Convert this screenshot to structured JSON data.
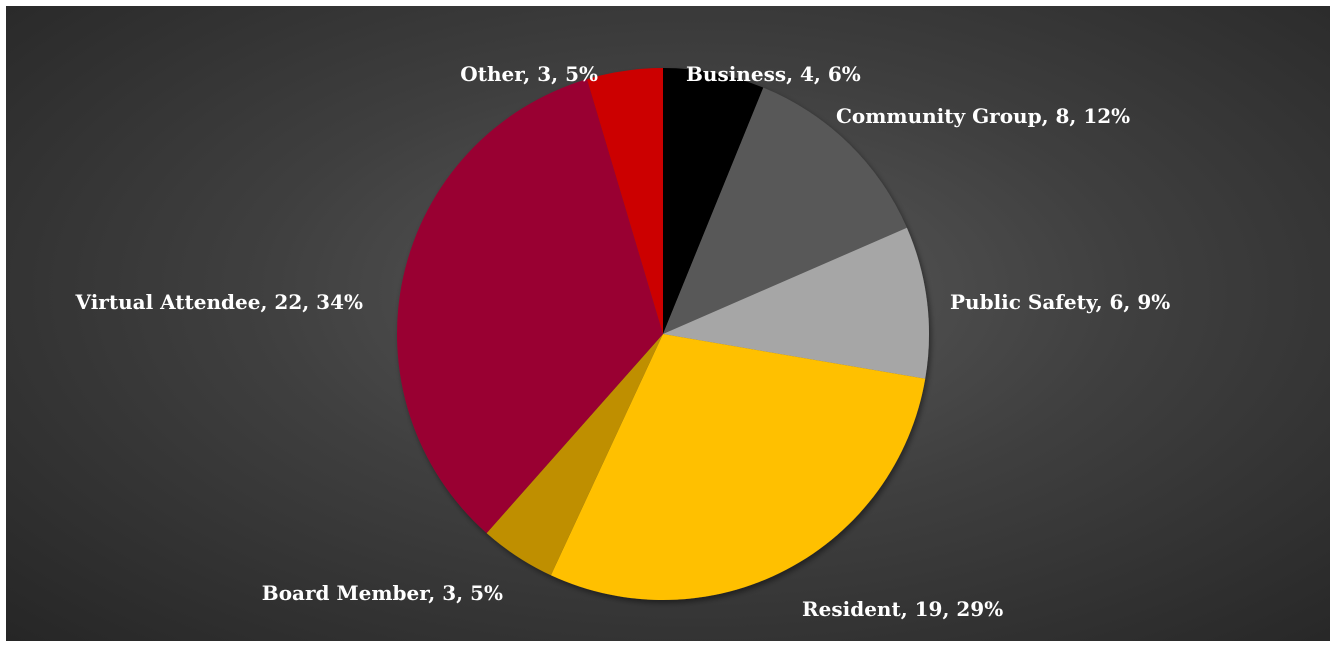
{
  "chart_data": {
    "type": "pie",
    "title": "",
    "slices": [
      {
        "label": "Business",
        "value": 4,
        "percent": "6%",
        "color": "#000000"
      },
      {
        "label": "Community Group",
        "value": 8,
        "percent": "12%",
        "color": "#595959"
      },
      {
        "label": "Public Safety",
        "value": 6,
        "percent": "9%",
        "color": "#a6a6a6"
      },
      {
        "label": "Resident",
        "value": 19,
        "percent": "29%",
        "color": "#ffc000"
      },
      {
        "label": "Board Member",
        "value": 3,
        "percent": "5%",
        "color": "#bf8f00"
      },
      {
        "label": "Virtual Attendee",
        "value": 22,
        "percent": "34%",
        "color": "#990033"
      },
      {
        "label": "Other",
        "value": 3,
        "percent": "5%",
        "color": "#cc0000"
      }
    ],
    "data_labels": "outside",
    "legend": "none",
    "start_angle": "12 o'clock, clockwise"
  }
}
